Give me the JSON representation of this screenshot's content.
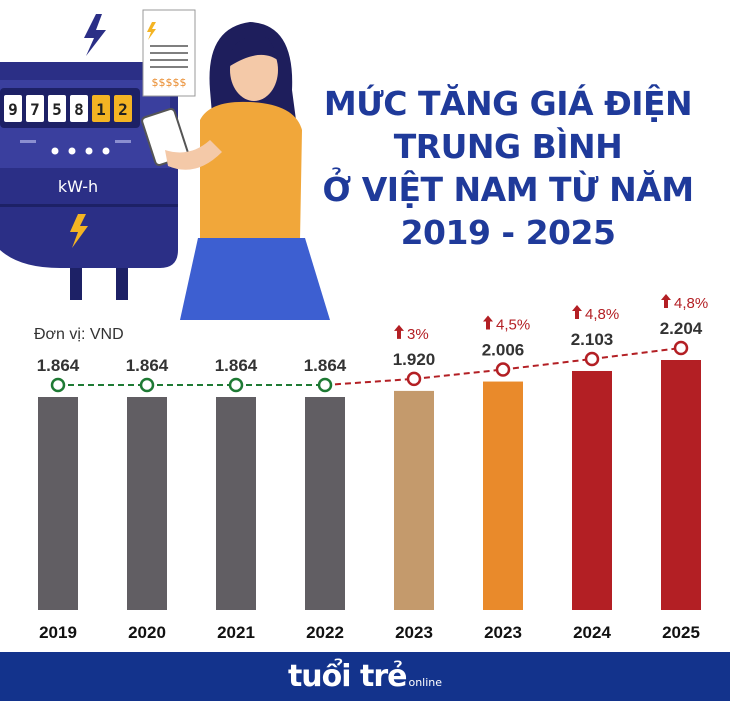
{
  "title_lines": [
    "MỨC TĂNG GIÁ ĐIỆN",
    "TRUNG BÌNH",
    "Ở VIỆT NAM TỪ NĂM",
    "2019 - 2025"
  ],
  "unit_label": "Đơn vị: VND",
  "illustration": {
    "meter_digits": [
      "9",
      "7",
      "5",
      "8",
      "1",
      "2"
    ],
    "meter_unit": "kW-h",
    "bill_text": "$$$$$"
  },
  "chart_data": {
    "type": "bar",
    "title": "MỨC TĂNG GIÁ ĐIỆN TRUNG BÌNH Ở VIỆT NAM TỪ NĂM 2019 - 2025",
    "ylabel": "Đơn vị: VND",
    "categories": [
      "2019",
      "2020",
      "2021",
      "2022",
      "2023",
      "2023",
      "2024",
      "2025"
    ],
    "values": [
      1864,
      1864,
      1864,
      1864,
      1920,
      2006,
      2103,
      2204
    ],
    "value_labels": [
      "1.864",
      "1.864",
      "1.864",
      "1.864",
      "1.920",
      "2.006",
      "2.103",
      "2.204"
    ],
    "increase_labels": [
      "",
      "",
      "",
      "",
      "3%",
      "4,5%",
      "4,8%",
      "4,8%"
    ],
    "bar_colors": [
      "#615e63",
      "#615e63",
      "#615e63",
      "#615e63",
      "#c49a6c",
      "#e98a2b",
      "#b31f24",
      "#b31f24"
    ],
    "line_colors": {
      "flat": "#1e7a34",
      "rising": "#b31f24"
    },
    "grid": false
  },
  "footer": {
    "brand": "tuổi trẻ",
    "brand_sub": "online",
    "background": "#13338c"
  }
}
